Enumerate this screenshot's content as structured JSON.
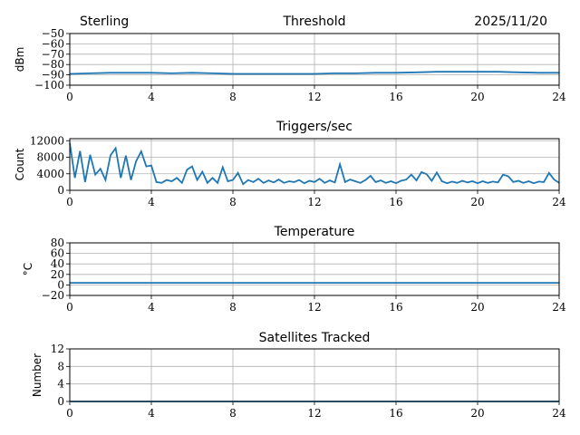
{
  "header": {
    "left": "Sterling",
    "right": "2025/11/20"
  },
  "colors": {
    "series": "#1f77b4",
    "grid": "#b0b0b0"
  },
  "chart_data": [
    {
      "type": "line",
      "title": "Threshold",
      "ylabel": "dBm",
      "xlim": [
        0,
        24
      ],
      "ylim": [
        -100,
        -50
      ],
      "xticks": [
        0,
        4,
        8,
        12,
        16,
        20,
        24
      ],
      "yticks": [
        -100,
        -90,
        -80,
        -70,
        -60,
        -50
      ],
      "grid": true,
      "x": [
        0,
        1,
        2,
        3,
        4,
        5,
        6,
        7,
        8,
        9,
        10,
        11,
        12,
        13,
        14,
        15,
        16,
        17,
        18,
        19,
        20,
        21,
        22,
        23,
        24
      ],
      "values": [
        -89,
        -88.5,
        -88,
        -88,
        -88,
        -88.5,
        -88,
        -88.5,
        -89,
        -89,
        -89,
        -89,
        -89,
        -88.5,
        -88.5,
        -88,
        -88,
        -87.5,
        -87,
        -87,
        -87,
        -87,
        -87.5,
        -88,
        -88
      ]
    },
    {
      "type": "line",
      "title": "Triggers/sec",
      "ylabel": "Count",
      "xlim": [
        0,
        24
      ],
      "ylim": [
        0,
        12500
      ],
      "xticks": [
        0,
        4,
        8,
        12,
        16,
        20,
        24
      ],
      "yticks": [
        0,
        4000,
        8000,
        12000
      ],
      "grid": true,
      "x_step": 0.25,
      "values": [
        11500,
        3000,
        9500,
        2000,
        8600,
        3800,
        5200,
        2500,
        8500,
        10200,
        3000,
        8400,
        2500,
        7000,
        9400,
        5800,
        6000,
        2000,
        1800,
        2500,
        2200,
        3000,
        1800,
        5000,
        5800,
        2500,
        4500,
        1800,
        3000,
        1800,
        5600,
        2200,
        2500,
        4200,
        1500,
        2500,
        2000,
        2800,
        1800,
        2400,
        1900,
        2600,
        1800,
        2200,
        2000,
        2500,
        1700,
        2300,
        2000,
        2800,
        1800,
        2400,
        1900,
        6300,
        2000,
        2600,
        2200,
        1800,
        2500,
        3500,
        2000,
        2400,
        1800,
        2200,
        1700,
        2300,
        2600,
        3800,
        2400,
        4400,
        3900,
        2300,
        4300,
        2200,
        1700,
        2100,
        1800,
        2300,
        1900,
        2200,
        1700,
        2200,
        1800,
        2100,
        1900,
        3800,
        3400,
        2000,
        2300,
        1800,
        2200,
        1700,
        2100,
        2000,
        4200,
        2600,
        1800
      ]
    },
    {
      "type": "line",
      "title": "Temperature",
      "ylabel": "°C",
      "xlim": [
        0,
        24
      ],
      "ylim": [
        -20,
        80
      ],
      "xticks": [
        0,
        4,
        8,
        12,
        16,
        20,
        24
      ],
      "yticks": [
        -20,
        0,
        20,
        40,
        60,
        80
      ],
      "grid": true,
      "x": [
        0,
        4,
        8,
        12,
        16,
        20,
        24
      ],
      "values": [
        4,
        4,
        4,
        4,
        4,
        4,
        4
      ]
    },
    {
      "type": "line",
      "title": "Satellites Tracked",
      "ylabel": "Number",
      "xlim": [
        0,
        24
      ],
      "ylim": [
        0,
        12
      ],
      "xticks": [
        0,
        4,
        8,
        12,
        16,
        20,
        24
      ],
      "yticks": [
        0,
        4,
        8,
        12
      ],
      "grid": true,
      "x": [
        0,
        24
      ],
      "values": [
        0,
        0
      ]
    }
  ]
}
